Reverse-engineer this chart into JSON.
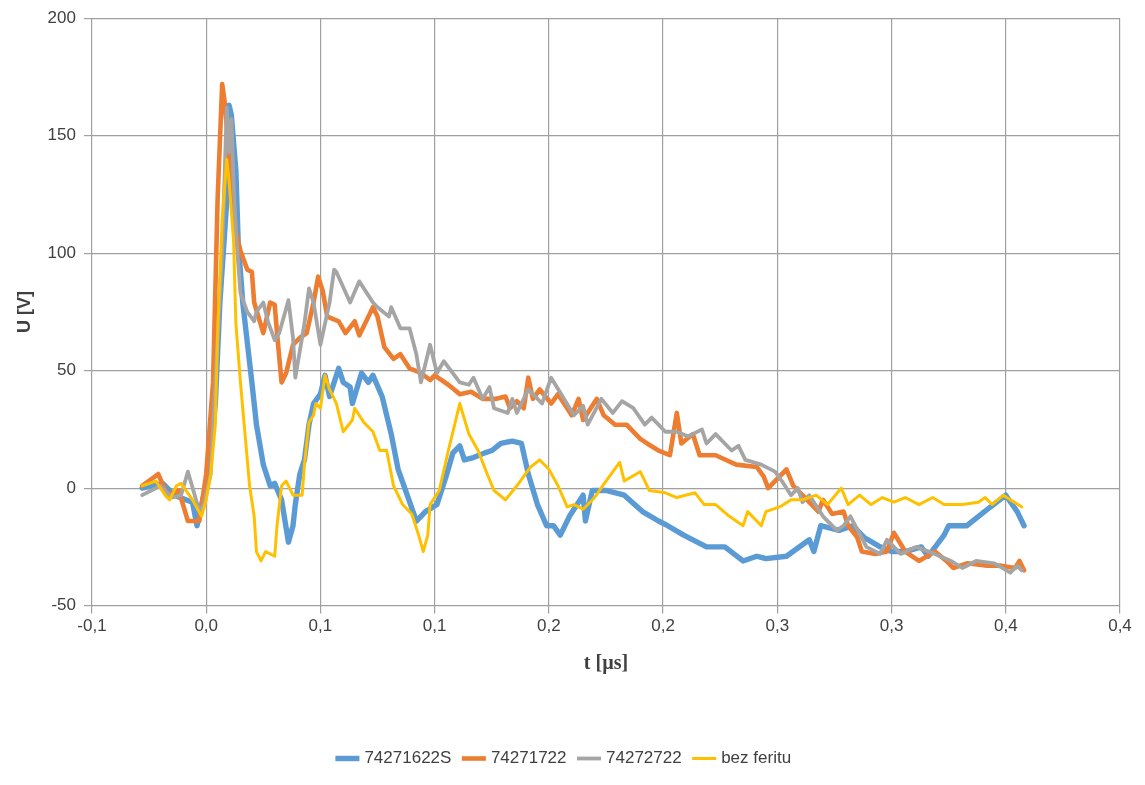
{
  "chart_data": {
    "type": "line",
    "xlabel": "t [µs]",
    "ylabel": "U [V]",
    "xlim": [
      -0.05,
      0.4
    ],
    "xticks": [
      {
        "value": -0.05,
        "label": "-0,1"
      },
      {
        "value": 0,
        "label": "0,0"
      },
      {
        "value": 0.05,
        "label": "0,1"
      },
      {
        "value": 0.1,
        "label": "0,1"
      },
      {
        "value": 0.15,
        "label": "0,2"
      },
      {
        "value": 0.2,
        "label": "0,2"
      },
      {
        "value": 0.25,
        "label": "0,3"
      },
      {
        "value": 0.3,
        "label": "0,3"
      },
      {
        "value": 0.35,
        "label": "0,4"
      },
      {
        "value": 0.4,
        "label": "0,4"
      }
    ],
    "ylim": [
      -50,
      200
    ],
    "yticks": [
      -50,
      0,
      50,
      100,
      150,
      200
    ],
    "grid": true,
    "legend": "bottom",
    "marker": "none",
    "line_style": "solid",
    "series": [
      {
        "name": "74271622S",
        "color": "#5b9bd5",
        "x": [
          -0.028,
          -0.019,
          -0.014,
          -0.006,
          -0.004,
          -0.002,
          0.001,
          0.004,
          0.006,
          0.009,
          0.01,
          0.011,
          0.013,
          0.014,
          0.016,
          0.018,
          0.02,
          0.022,
          0.025,
          0.028,
          0.03,
          0.033,
          0.036,
          0.038,
          0.039,
          0.041,
          0.043,
          0.045,
          0.047,
          0.05,
          0.052,
          0.054,
          0.056,
          0.058,
          0.06,
          0.063,
          0.064,
          0.068,
          0.071,
          0.073,
          0.077,
          0.081,
          0.084,
          0.088,
          0.092,
          0.096,
          0.101,
          0.105,
          0.108,
          0.111,
          0.113,
          0.117,
          0.122,
          0.125,
          0.129,
          0.134,
          0.138,
          0.141,
          0.145,
          0.149,
          0.152,
          0.155,
          0.159,
          0.165,
          0.166,
          0.169,
          0.175,
          0.183,
          0.191,
          0.198,
          0.202,
          0.209,
          0.219,
          0.227,
          0.235,
          0.241,
          0.245,
          0.254,
          0.264,
          0.266,
          0.269,
          0.277,
          0.283,
          0.288,
          0.295,
          0.3,
          0.306,
          0.313,
          0.316,
          0.323,
          0.325,
          0.333,
          0.342,
          0.35,
          0.355,
          0.358
        ],
        "values": [
          0,
          2,
          -3,
          -6,
          -16,
          -7,
          6,
          36,
          79,
          122,
          163,
          159,
          135,
          105,
          79,
          62,
          45,
          27,
          10,
          1,
          2,
          -5,
          -23,
          -16,
          -7,
          6,
          12,
          27,
          36,
          40,
          48,
          39,
          45,
          51,
          45,
          43,
          36,
          49,
          45,
          48,
          39,
          23,
          8,
          -3,
          -14,
          -10,
          -7,
          5,
          15,
          18,
          12,
          13,
          15,
          16,
          19,
          20,
          19,
          6,
          -7,
          -16,
          -16,
          -20,
          -12,
          -3,
          -14,
          -1,
          -1,
          -3,
          -10,
          -14,
          -16,
          -20,
          -25,
          -25,
          -31,
          -29,
          -30,
          -29,
          -22,
          -27,
          -16,
          -18,
          -16,
          -21,
          -25,
          -27,
          -27,
          -25,
          -29,
          -20,
          -16,
          -16,
          -9,
          -3,
          -10,
          -16
        ]
      },
      {
        "name": "74271722",
        "color": "#ed7d31",
        "x": [
          -0.028,
          -0.021,
          -0.017,
          -0.012,
          -0.008,
          -0.003,
          0.0,
          0.003,
          0.005,
          0.007,
          0.008,
          0.01,
          0.012,
          0.013,
          0.015,
          0.018,
          0.02,
          0.021,
          0.025,
          0.028,
          0.03,
          0.031,
          0.033,
          0.035,
          0.038,
          0.041,
          0.044,
          0.047,
          0.049,
          0.051,
          0.053,
          0.058,
          0.061,
          0.065,
          0.067,
          0.073,
          0.075,
          0.078,
          0.082,
          0.085,
          0.089,
          0.094,
          0.098,
          0.1,
          0.106,
          0.111,
          0.116,
          0.121,
          0.127,
          0.131,
          0.133,
          0.136,
          0.139,
          0.141,
          0.143,
          0.146,
          0.151,
          0.154,
          0.16,
          0.163,
          0.165,
          0.171,
          0.174,
          0.179,
          0.184,
          0.19,
          0.193,
          0.198,
          0.203,
          0.206,
          0.208,
          0.213,
          0.216,
          0.223,
          0.232,
          0.241,
          0.244,
          0.246,
          0.252,
          0.254,
          0.257,
          0.261,
          0.268,
          0.27,
          0.274,
          0.279,
          0.281,
          0.285,
          0.287,
          0.293,
          0.298,
          0.301,
          0.306,
          0.312,
          0.319,
          0.324,
          0.327,
          0.333,
          0.342,
          0.348,
          0.354,
          0.356,
          0.358
        ],
        "values": [
          1,
          6,
          -3,
          -1,
          -14,
          -14,
          6,
          45,
          123,
          172,
          165,
          143,
          122,
          109,
          101,
          93,
          92,
          79,
          66,
          79,
          78,
          66,
          45,
          49,
          61,
          64,
          66,
          79,
          90,
          84,
          73,
          71,
          66,
          71,
          65,
          77,
          73,
          60,
          55,
          57,
          51,
          49,
          46,
          48,
          44,
          40,
          41,
          38,
          38,
          39,
          34,
          37,
          34,
          47,
          38,
          42,
          36,
          40,
          31,
          38,
          29,
          38,
          31,
          27,
          27,
          21,
          19,
          16,
          14,
          32,
          19,
          23,
          14,
          14,
          10,
          9,
          5,
          0,
          6,
          8,
          1,
          -3,
          -10,
          -5,
          -11,
          -10,
          -16,
          -21,
          -27,
          -28,
          -27,
          -19,
          -27,
          -31,
          -27,
          -31,
          -34,
          -32,
          -33,
          -33,
          -34,
          -31,
          -35
        ]
      },
      {
        "name": "74272722",
        "color": "#a5a5a5",
        "x": [
          -0.028,
          -0.02,
          -0.015,
          -0.011,
          -0.008,
          -0.005,
          -0.003,
          -0.001,
          0.002,
          0.004,
          0.007,
          0.009,
          0.01,
          0.011,
          0.012,
          0.013,
          0.015,
          0.018,
          0.021,
          0.022,
          0.025,
          0.027,
          0.03,
          0.032,
          0.036,
          0.038,
          0.039,
          0.043,
          0.045,
          0.047,
          0.05,
          0.054,
          0.056,
          0.057,
          0.063,
          0.067,
          0.073,
          0.075,
          0.08,
          0.081,
          0.085,
          0.089,
          0.092,
          0.094,
          0.098,
          0.101,
          0.104,
          0.111,
          0.115,
          0.117,
          0.121,
          0.124,
          0.126,
          0.132,
          0.134,
          0.136,
          0.141,
          0.147,
          0.151,
          0.156,
          0.161,
          0.165,
          0.167,
          0.173,
          0.178,
          0.182,
          0.187,
          0.192,
          0.195,
          0.201,
          0.206,
          0.211,
          0.217,
          0.219,
          0.223,
          0.23,
          0.233,
          0.236,
          0.243,
          0.249,
          0.252,
          0.256,
          0.259,
          0.261,
          0.264,
          0.27,
          0.276,
          0.279,
          0.282,
          0.289,
          0.295,
          0.298,
          0.304,
          0.311,
          0.319,
          0.326,
          0.331,
          0.337,
          0.345,
          0.352,
          0.355,
          0.357
        ],
        "values": [
          -3,
          1,
          -4,
          -3,
          7,
          -3,
          -10,
          -7,
          6,
          45,
          101,
          162,
          143,
          157,
          130,
          109,
          83,
          75,
          71,
          75,
          79,
          71,
          63,
          66,
          80,
          64,
          47,
          70,
          85,
          79,
          61,
          79,
          93,
          92,
          79,
          88,
          79,
          77,
          73,
          77,
          68,
          68,
          57,
          45,
          61,
          49,
          54,
          45,
          44,
          47,
          38,
          43,
          34,
          32,
          38,
          32,
          42,
          36,
          47,
          39,
          31,
          35,
          27,
          38,
          32,
          37,
          34,
          27,
          30,
          24,
          24,
          22,
          25,
          19,
          23,
          16,
          18,
          12,
          10,
          7,
          3,
          -3,
          0,
          -6,
          -3,
          -12,
          -18,
          -16,
          -12,
          -25,
          -28,
          -22,
          -28,
          -25,
          -28,
          -31,
          -34,
          -31,
          -32,
          -36,
          -33,
          -35
        ]
      },
      {
        "name": "bez feritu",
        "color": "#ffc000",
        "x": [
          -0.028,
          -0.022,
          -0.018,
          -0.016,
          -0.013,
          -0.011,
          -0.006,
          -0.002,
          0.0,
          0.002,
          0.004,
          0.005,
          0.007,
          0.009,
          0.01,
          0.012,
          0.013,
          0.015,
          0.017,
          0.019,
          0.021,
          0.022,
          0.024,
          0.026,
          0.03,
          0.031,
          0.033,
          0.035,
          0.038,
          0.042,
          0.043,
          0.045,
          0.047,
          0.048,
          0.05,
          0.052,
          0.054,
          0.057,
          0.06,
          0.064,
          0.065,
          0.069,
          0.073,
          0.076,
          0.079,
          0.082,
          0.086,
          0.09,
          0.093,
          0.095,
          0.097,
          0.098,
          0.102,
          0.106,
          0.109,
          0.111,
          0.115,
          0.119,
          0.123,
          0.126,
          0.131,
          0.136,
          0.142,
          0.146,
          0.15,
          0.154,
          0.158,
          0.161,
          0.165,
          0.17,
          0.175,
          0.181,
          0.183,
          0.19,
          0.194,
          0.201,
          0.206,
          0.214,
          0.218,
          0.223,
          0.229,
          0.235,
          0.237,
          0.243,
          0.245,
          0.251,
          0.256,
          0.261,
          0.267,
          0.272,
          0.278,
          0.281,
          0.286,
          0.291,
          0.296,
          0.301,
          0.306,
          0.312,
          0.318,
          0.323,
          0.331,
          0.338,
          0.341,
          0.344,
          0.349,
          0.352,
          0.357
        ],
        "values": [
          1,
          3,
          -3,
          -5,
          1,
          2,
          -5,
          -12,
          -5,
          6,
          27,
          66,
          114,
          140,
          131,
          105,
          70,
          45,
          23,
          1,
          -12,
          -27,
          -31,
          -27,
          -29,
          -16,
          1,
          3,
          -3,
          -3,
          10,
          28,
          31,
          36,
          34,
          48,
          42,
          36,
          24,
          29,
          34,
          28,
          24,
          16,
          16,
          1,
          -7,
          -11,
          -20,
          -27,
          -20,
          -7,
          -1,
          16,
          28,
          36,
          23,
          16,
          6,
          -1,
          -5,
          1,
          9,
          12,
          8,
          1,
          -8,
          -7,
          -9,
          -4,
          3,
          11,
          3,
          7,
          -1,
          -2,
          -4,
          -2,
          -7,
          -7,
          -12,
          -16,
          -10,
          -16,
          -10,
          -8,
          -5,
          -5,
          -3,
          -7,
          0,
          -7,
          -3,
          -7,
          -4,
          -6,
          -4,
          -7,
          -4,
          -7,
          -7,
          -6,
          -4,
          -7,
          -3,
          -5,
          -8
        ]
      }
    ]
  }
}
